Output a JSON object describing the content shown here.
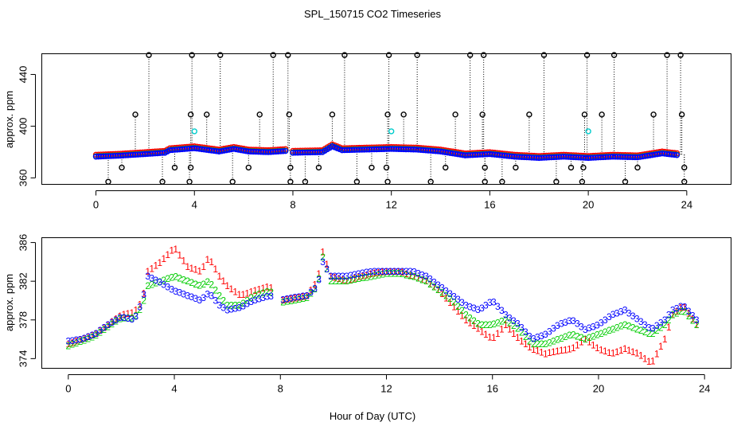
{
  "chart_data": [
    {
      "type": "scatter",
      "title": "SPL_150715  CO2 Timeseries",
      "xlabel": "",
      "ylabel": "approx. ppm",
      "xlim": [
        -2.2,
        25.8
      ],
      "ylim": [
        355,
        456
      ],
      "xticks": [
        0,
        4,
        8,
        12,
        16,
        20,
        24
      ],
      "yticks": [
        360,
        400,
        440
      ],
      "grid": false,
      "colors": {
        "main": "#0000ff",
        "base": "#ff0000",
        "secondary": "#00cc00",
        "outlier": "#000000",
        "flagged": "#00cccc"
      },
      "baseline": [
        {
          "x": 0,
          "y": 377
        },
        {
          "x": 1,
          "y": 377.8
        },
        {
          "x": 2,
          "y": 379
        },
        {
          "x": 2.8,
          "y": 380
        },
        {
          "x": 3.0,
          "y": 382
        },
        {
          "x": 4.0,
          "y": 383.5
        },
        {
          "x": 5.0,
          "y": 381
        },
        {
          "x": 5.6,
          "y": 383
        },
        {
          "x": 6.2,
          "y": 381
        },
        {
          "x": 7.0,
          "y": 380.5
        },
        {
          "x": 7.8,
          "y": 381.5
        },
        {
          "x": 8.0,
          "y": 380
        },
        {
          "x": 9.2,
          "y": 380.5
        },
        {
          "x": 9.6,
          "y": 385
        },
        {
          "x": 10.0,
          "y": 382
        },
        {
          "x": 11.0,
          "y": 382.5
        },
        {
          "x": 12.0,
          "y": 383
        },
        {
          "x": 13.0,
          "y": 382.5
        },
        {
          "x": 14.0,
          "y": 381
        },
        {
          "x": 15.0,
          "y": 378
        },
        {
          "x": 16.0,
          "y": 379
        },
        {
          "x": 17.0,
          "y": 377
        },
        {
          "x": 18.0,
          "y": 376
        },
        {
          "x": 19.0,
          "y": 377
        },
        {
          "x": 20.0,
          "y": 376
        },
        {
          "x": 21.0,
          "y": 377
        },
        {
          "x": 22.0,
          "y": 376.5
        },
        {
          "x": 23.0,
          "y": 379.5
        },
        {
          "x": 23.7,
          "y": 378
        }
      ],
      "high_outliers": [
        {
          "x": 2.15,
          "y": 455
        },
        {
          "x": 3.9,
          "y": 455
        },
        {
          "x": 5.05,
          "y": 455
        },
        {
          "x": 7.2,
          "y": 455
        },
        {
          "x": 7.8,
          "y": 455
        },
        {
          "x": 10.1,
          "y": 455
        },
        {
          "x": 11.9,
          "y": 455
        },
        {
          "x": 13.05,
          "y": 455
        },
        {
          "x": 15.2,
          "y": 455
        },
        {
          "x": 15.75,
          "y": 455
        },
        {
          "x": 18.2,
          "y": 455
        },
        {
          "x": 19.95,
          "y": 455
        },
        {
          "x": 21.05,
          "y": 455
        },
        {
          "x": 23.2,
          "y": 455
        },
        {
          "x": 23.75,
          "y": 455
        },
        {
          "x": 1.6,
          "y": 409
        },
        {
          "x": 3.85,
          "y": 409
        },
        {
          "x": 4.5,
          "y": 409
        },
        {
          "x": 6.65,
          "y": 409
        },
        {
          "x": 7.85,
          "y": 409
        },
        {
          "x": 9.6,
          "y": 409
        },
        {
          "x": 11.85,
          "y": 409
        },
        {
          "x": 12.5,
          "y": 409
        },
        {
          "x": 14.6,
          "y": 409
        },
        {
          "x": 15.7,
          "y": 409
        },
        {
          "x": 17.6,
          "y": 409
        },
        {
          "x": 19.85,
          "y": 409
        },
        {
          "x": 20.55,
          "y": 409
        },
        {
          "x": 22.65,
          "y": 409
        },
        {
          "x": 23.8,
          "y": 409
        }
      ],
      "low_outliers": [
        {
          "x": 0.5,
          "y": 357
        },
        {
          "x": 2.7,
          "y": 357
        },
        {
          "x": 3.8,
          "y": 357
        },
        {
          "x": 5.55,
          "y": 357
        },
        {
          "x": 7.9,
          "y": 357
        },
        {
          "x": 8.5,
          "y": 357
        },
        {
          "x": 10.6,
          "y": 357
        },
        {
          "x": 11.85,
          "y": 357
        },
        {
          "x": 13.6,
          "y": 357
        },
        {
          "x": 15.8,
          "y": 357
        },
        {
          "x": 16.5,
          "y": 357
        },
        {
          "x": 18.7,
          "y": 357
        },
        {
          "x": 19.75,
          "y": 357
        },
        {
          "x": 21.5,
          "y": 357
        },
        {
          "x": 23.9,
          "y": 357
        },
        {
          "x": 1.05,
          "y": 368
        },
        {
          "x": 3.2,
          "y": 368
        },
        {
          "x": 3.85,
          "y": 368
        },
        {
          "x": 6.2,
          "y": 368
        },
        {
          "x": 7.9,
          "y": 368
        },
        {
          "x": 9.05,
          "y": 368
        },
        {
          "x": 11.2,
          "y": 368
        },
        {
          "x": 11.8,
          "y": 368
        },
        {
          "x": 14.2,
          "y": 368
        },
        {
          "x": 15.8,
          "y": 368
        },
        {
          "x": 17.05,
          "y": 368
        },
        {
          "x": 19.3,
          "y": 368
        },
        {
          "x": 19.8,
          "y": 368
        },
        {
          "x": 22.0,
          "y": 368
        },
        {
          "x": 23.9,
          "y": 368
        }
      ],
      "cyan_points": [
        {
          "x": 4.0,
          "y": 396
        },
        {
          "x": 12.0,
          "y": 396
        },
        {
          "x": 20.0,
          "y": 396
        }
      ]
    },
    {
      "type": "line",
      "title": "",
      "xlabel": "Hour of Day (UTC)",
      "ylabel": "approx. ppm",
      "xlim": [
        -1.0,
        25.0
      ],
      "ylim": [
        373.0,
        386.5
      ],
      "xticks": [
        0,
        4,
        8,
        12,
        16,
        20,
        24
      ],
      "yticks": [
        374,
        378,
        382,
        386
      ],
      "grid": false,
      "colors": {
        "series1": "#ff0000",
        "series2": "#00cc00",
        "series3": "#0000ff"
      },
      "series": [
        {
          "name": "1",
          "points": [
            [
              0.0,
              375.5
            ],
            [
              0.5,
              376.0
            ],
            [
              1.0,
              376.5
            ],
            [
              1.5,
              377.5
            ],
            [
              2.0,
              378.5
            ],
            [
              2.5,
              378.8
            ],
            [
              2.8,
              380.0
            ],
            [
              3.0,
              383.0
            ],
            [
              3.5,
              384.0
            ],
            [
              4.0,
              385.5
            ],
            [
              4.5,
              383.5
            ],
            [
              5.0,
              383.0
            ],
            [
              5.3,
              384.5
            ],
            [
              5.7,
              382.5
            ],
            [
              6.0,
              381.5
            ],
            [
              6.5,
              380.5
            ],
            [
              7.0,
              381.0
            ],
            [
              7.6,
              381.5
            ],
            [
              8.0,
              380.0
            ],
            [
              8.5,
              380.2
            ],
            [
              9.0,
              380.5
            ],
            [
              9.4,
              382.0
            ],
            [
              9.6,
              385.0
            ],
            [
              9.9,
              382.5
            ],
            [
              10.5,
              382.0
            ],
            [
              11.0,
              382.5
            ],
            [
              11.5,
              382.8
            ],
            [
              12.0,
              383.0
            ],
            [
              12.5,
              383.0
            ],
            [
              13.0,
              382.5
            ],
            [
              13.5,
              382.0
            ],
            [
              14.0,
              381.0
            ],
            [
              14.5,
              379.5
            ],
            [
              15.0,
              378.0
            ],
            [
              15.5,
              377.0
            ],
            [
              16.0,
              376.0
            ],
            [
              16.5,
              377.5
            ],
            [
              17.0,
              376.0
            ],
            [
              17.5,
              375.0
            ],
            [
              18.0,
              374.5
            ],
            [
              18.5,
              374.8
            ],
            [
              19.0,
              375.0
            ],
            [
              19.5,
              376.0
            ],
            [
              20.0,
              375.0
            ],
            [
              20.5,
              374.5
            ],
            [
              21.0,
              375.0
            ],
            [
              21.5,
              374.5
            ],
            [
              22.0,
              373.5
            ],
            [
              22.5,
              376.0
            ],
            [
              22.8,
              378.5
            ],
            [
              23.2,
              379.5
            ],
            [
              23.7,
              377.5
            ]
          ]
        },
        {
          "name": "2",
          "points": [
            [
              0.0,
              375.3
            ],
            [
              0.5,
              375.8
            ],
            [
              1.0,
              376.3
            ],
            [
              1.5,
              377.3
            ],
            [
              2.0,
              378.2
            ],
            [
              2.5,
              378.2
            ],
            [
              2.8,
              379.5
            ],
            [
              3.0,
              381.5
            ],
            [
              3.5,
              382.0
            ],
            [
              4.0,
              382.5
            ],
            [
              4.5,
              382.0
            ],
            [
              5.0,
              381.5
            ],
            [
              5.3,
              382.0
            ],
            [
              5.7,
              380.5
            ],
            [
              6.0,
              379.5
            ],
            [
              6.5,
              379.5
            ],
            [
              7.0,
              380.5
            ],
            [
              7.6,
              381.0
            ],
            [
              8.0,
              379.8
            ],
            [
              8.5,
              380.0
            ],
            [
              9.0,
              380.3
            ],
            [
              9.4,
              381.5
            ],
            [
              9.6,
              384.5
            ],
            [
              9.9,
              382.0
            ],
            [
              10.5,
              382.0
            ],
            [
              11.0,
              382.3
            ],
            [
              11.5,
              382.5
            ],
            [
              12.0,
              382.8
            ],
            [
              12.5,
              382.8
            ],
            [
              13.0,
              382.5
            ],
            [
              13.5,
              382.0
            ],
            [
              14.0,
              381.0
            ],
            [
              14.5,
              380.0
            ],
            [
              15.0,
              378.5
            ],
            [
              15.5,
              377.5
            ],
            [
              16.0,
              377.5
            ],
            [
              16.5,
              378.0
            ],
            [
              17.0,
              377.0
            ],
            [
              17.5,
              375.5
            ],
            [
              18.0,
              375.5
            ],
            [
              18.5,
              376.0
            ],
            [
              19.0,
              376.5
            ],
            [
              19.5,
              376.0
            ],
            [
              20.0,
              376.5
            ],
            [
              20.5,
              377.0
            ],
            [
              21.0,
              377.5
            ],
            [
              21.5,
              377.0
            ],
            [
              22.0,
              376.5
            ],
            [
              22.5,
              377.5
            ],
            [
              22.8,
              378.5
            ],
            [
              23.2,
              379.0
            ],
            [
              23.7,
              377.5
            ]
          ]
        },
        {
          "name": "3",
          "points": [
            [
              0.0,
              375.8
            ],
            [
              0.5,
              376.0
            ],
            [
              1.0,
              376.5
            ],
            [
              1.5,
              377.5
            ],
            [
              2.0,
              378.3
            ],
            [
              2.5,
              378.0
            ],
            [
              2.8,
              380.0
            ],
            [
              3.0,
              382.5
            ],
            [
              3.5,
              381.8
            ],
            [
              4.0,
              381.0
            ],
            [
              4.5,
              380.5
            ],
            [
              5.0,
              380.0
            ],
            [
              5.3,
              380.8
            ],
            [
              5.7,
              379.5
            ],
            [
              6.0,
              379.0
            ],
            [
              6.5,
              379.3
            ],
            [
              7.0,
              380.0
            ],
            [
              7.6,
              380.5
            ],
            [
              8.0,
              380.0
            ],
            [
              8.5,
              380.3
            ],
            [
              9.0,
              380.5
            ],
            [
              9.4,
              381.5
            ],
            [
              9.6,
              384.0
            ],
            [
              9.9,
              382.5
            ],
            [
              10.5,
              382.5
            ],
            [
              11.0,
              382.8
            ],
            [
              11.5,
              383.0
            ],
            [
              12.0,
              383.0
            ],
            [
              12.5,
              383.0
            ],
            [
              13.0,
              383.0
            ],
            [
              13.5,
              382.5
            ],
            [
              14.0,
              381.5
            ],
            [
              14.5,
              380.5
            ],
            [
              15.0,
              379.5
            ],
            [
              15.5,
              379.0
            ],
            [
              16.0,
              380.0
            ],
            [
              16.5,
              378.5
            ],
            [
              17.0,
              377.5
            ],
            [
              17.5,
              376.0
            ],
            [
              18.0,
              376.5
            ],
            [
              18.5,
              377.5
            ],
            [
              19.0,
              378.0
            ],
            [
              19.5,
              377.0
            ],
            [
              20.0,
              377.5
            ],
            [
              20.5,
              378.5
            ],
            [
              21.0,
              379.0
            ],
            [
              21.5,
              378.0
            ],
            [
              22.0,
              377.0
            ],
            [
              22.5,
              378.0
            ],
            [
              22.8,
              379.0
            ],
            [
              23.2,
              379.5
            ],
            [
              23.7,
              378.0
            ]
          ]
        }
      ]
    }
  ]
}
